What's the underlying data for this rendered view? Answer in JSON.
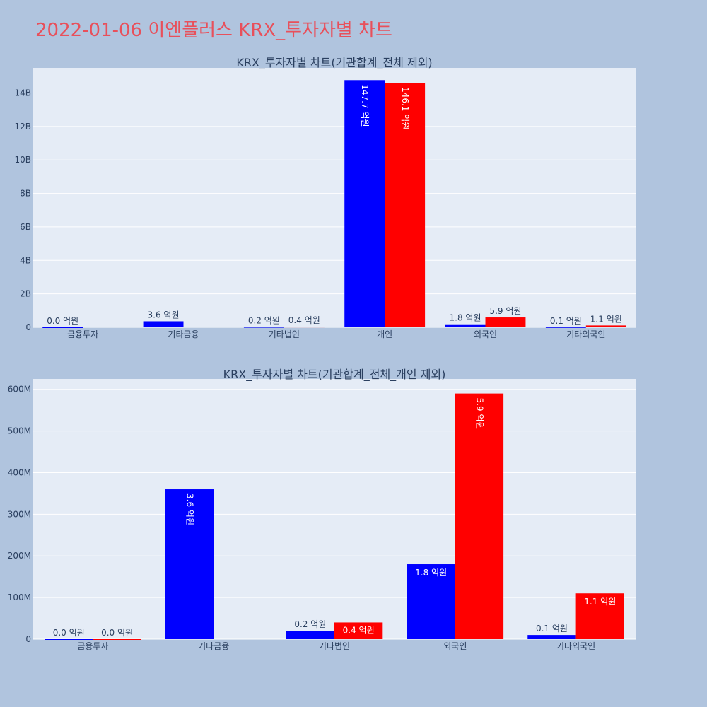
{
  "page_title": "2022-01-06 이엔플러스 KRX_투자자별 차트",
  "colors": {
    "buy": "#0000ff",
    "sell": "#ff0000",
    "plot_bg": "#e5ecf6",
    "page_bg": "#b0c4de",
    "title": "#e8505b"
  },
  "chart_data": [
    {
      "type": "bar",
      "title": "KRX_투자자별 차트(기관합계_전체 제외)",
      "categories": [
        "금융투자",
        "기타금융",
        "기타법인",
        "개인",
        "외국인",
        "기타외국인"
      ],
      "ylim": [
        0,
        15500000000
      ],
      "yticks": [
        0,
        2000000000,
        4000000000,
        6000000000,
        8000000000,
        10000000000,
        12000000000,
        14000000000
      ],
      "ytick_labels": [
        "0",
        "2B",
        "4B",
        "6B",
        "8B",
        "10B",
        "12B",
        "14B"
      ],
      "grid": true,
      "series": [
        {
          "color": "#0000ff",
          "values": [
            0,
            360000000,
            20000000,
            14770000000,
            180000000,
            10000000
          ],
          "labels": [
            "0.0 억원",
            "3.6 억원",
            "0.2 억원",
            "147.7 억원",
            "1.8 억원",
            "0.1 억원"
          ]
        },
        {
          "color": "#ff0000",
          "values": [
            null,
            null,
            40000000,
            14610000000,
            590000000,
            110000000
          ],
          "labels": [
            null,
            null,
            "0.4 억원",
            "146.1 억원",
            "5.9 억원",
            "1.1 억원"
          ]
        }
      ]
    },
    {
      "type": "bar",
      "title": "KRX_투자자별 차트(기관합계_전체_개인 제외)",
      "categories": [
        "금융투자",
        "기타금융",
        "기타법인",
        "외국인",
        "기타외국인"
      ],
      "ylim": [
        0,
        625000000
      ],
      "yticks": [
        0,
        100000000,
        200000000,
        300000000,
        400000000,
        500000000,
        600000000
      ],
      "ytick_labels": [
        "0",
        "100M",
        "200M",
        "300M",
        "400M",
        "500M",
        "600M"
      ],
      "grid": true,
      "series": [
        {
          "color": "#0000ff",
          "values": [
            0,
            360000000,
            20000000,
            180000000,
            10000000
          ],
          "labels": [
            "0.0 억원",
            "3.6 억원",
            "0.2 억원",
            "1.8 억원",
            "0.1 억원"
          ]
        },
        {
          "color": "#ff0000",
          "values": [
            0,
            null,
            40000000,
            590000000,
            110000000
          ],
          "labels": [
            "0.0 억원",
            null,
            "0.4 억원",
            "5.9 억원",
            "1.1 억원"
          ]
        }
      ]
    }
  ]
}
